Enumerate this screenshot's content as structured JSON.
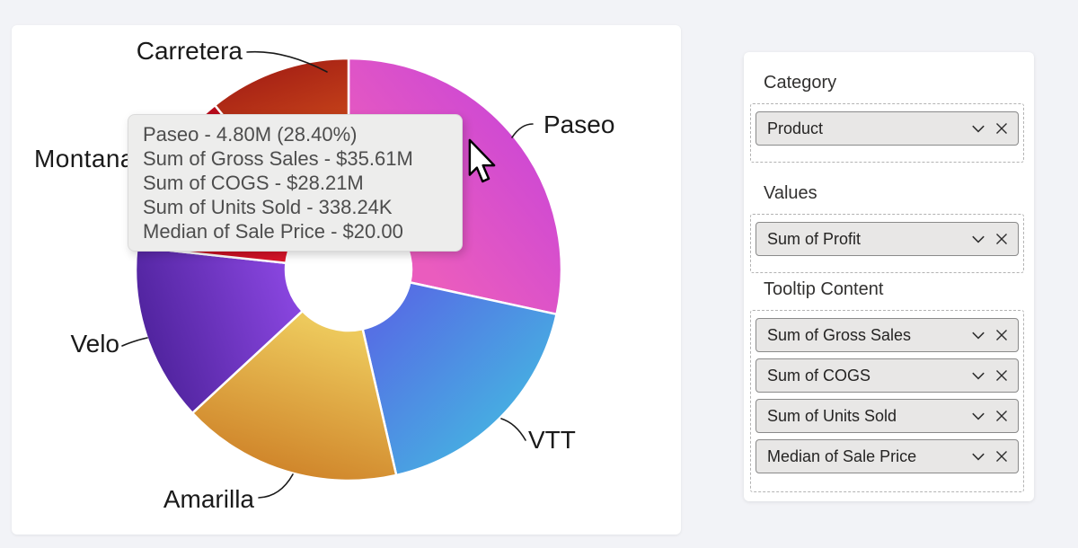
{
  "colors": {
    "page_bg": "#f2f3f7",
    "card_bg": "#ffffff",
    "tooltip_bg": "#ededec",
    "tooltip_text": "#4d4d4d",
    "pill_bg": "#e8e7e6",
    "pill_border": "#8a8a8a",
    "well_dashed_border": "#b3b3b3",
    "panel_label_text": "#323130",
    "chart_label_text": "#1a1a1a",
    "slice_gap_stroke": "#ffffff"
  },
  "chart_data": {
    "type": "pie",
    "subtype": "donut",
    "title": "",
    "category_field": "Product",
    "value_field": "Sum of Profit",
    "legend": "off",
    "data_labels": "category-only",
    "start_angle_deg": 0,
    "direction": "clockwise",
    "slices": [
      {
        "label": "Paseo",
        "share_pct": 28.4,
        "value_label": "4.80M",
        "color_outer": "#d04ad2",
        "color_inner": "#ea5cbe"
      },
      {
        "label": "VTT",
        "share_pct": 18.0,
        "color_outer": "#47abe2",
        "color_inner": "#5571e4"
      },
      {
        "label": "Amarilla",
        "share_pct": 16.7,
        "color_outer": "#d0862b",
        "color_inner": "#edc95c"
      },
      {
        "label": "Velo",
        "share_pct": 13.6,
        "color_outer": "#51249f",
        "color_inner": "#8845de"
      },
      {
        "label": "Montana",
        "share_pct": 12.5,
        "color_outer": "#b30a19",
        "color_inner": "#d9142a"
      },
      {
        "label": "Carretera",
        "share_pct": 10.8,
        "color_outer": "#a92415",
        "color_inner": "#e4641f"
      }
    ]
  },
  "tooltip": {
    "lines": [
      "Paseo - 4.80M (28.40%)",
      "Sum of Gross Sales - $35.61M",
      "Sum of COGS - $28.21M",
      "Sum of Units Sold - 338.24K",
      "Median of Sale Price - $20.00"
    ]
  },
  "fields_panel": {
    "sections": [
      {
        "label": "Category",
        "fields": [
          "Product"
        ]
      },
      {
        "label": "Values",
        "fields": [
          "Sum of Profit"
        ]
      },
      {
        "label": "Tooltip Content",
        "fields": [
          "Sum of Gross Sales",
          "Sum of COGS",
          "Sum of Units Sold",
          "Median of Sale Price"
        ]
      }
    ]
  },
  "icons": {
    "chevron": "chevron-down",
    "remove": "x-cross",
    "cursor": "arrow-pointer"
  }
}
